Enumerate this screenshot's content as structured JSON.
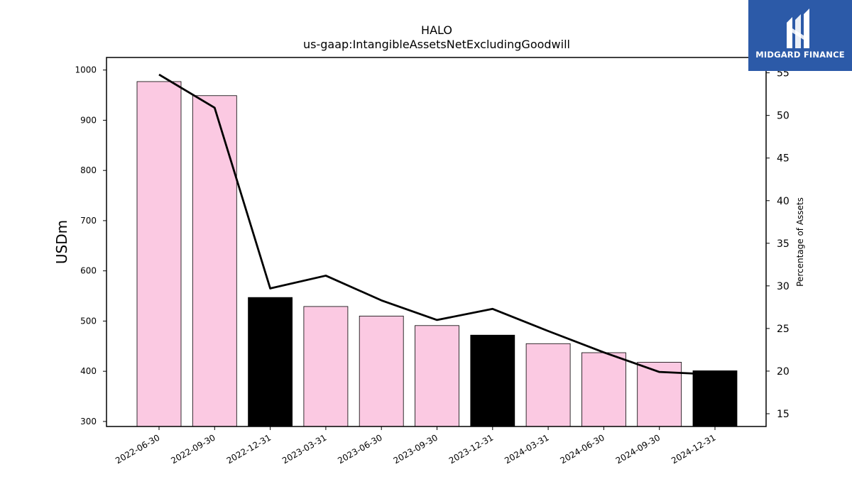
{
  "chart_data": {
    "type": "bar",
    "title": "HALO",
    "subtitle": "us-gaap:IntangibleAssetsNetExcludingGoodwill",
    "ylabel": "USDm",
    "y2label": "Percentage of Assets",
    "categories": [
      "2022-06-30",
      "2022-09-30",
      "2022-12-31",
      "2023-03-31",
      "2023-06-30",
      "2023-09-30",
      "2023-12-31",
      "2024-03-31",
      "2024-06-30",
      "2024-09-30",
      "2024-12-31"
    ],
    "series": [
      {
        "values": [
          977,
          949,
          547,
          529,
          510,
          491,
          472,
          455,
          437,
          418,
          401
        ],
        "colors": [
          "#fbc9e2",
          "#fbc9e2",
          "#000000",
          "#fbc9e2",
          "#fbc9e2",
          "#fbc9e2",
          "#000000",
          "#fbc9e2",
          "#fbc9e2",
          "#fbc9e2",
          "#000000"
        ]
      },
      {
        "axis": "right",
        "color": "#000000",
        "values": [
          54.8,
          50.9,
          29.7,
          31.2,
          28.3,
          26.0,
          27.3,
          24.7,
          22.2,
          19.9,
          19.6
        ]
      }
    ],
    "ylim": [
      290,
      1025
    ],
    "yticks": [
      300,
      400,
      500,
      600,
      700,
      800,
      900,
      1000
    ],
    "y2lim": [
      13.5,
      56.8
    ],
    "y2ticks": [
      15,
      20,
      25,
      30,
      35,
      40,
      45,
      50,
      55
    ]
  },
  "logo": {
    "text": "MIDGARD FINANCE",
    "bg_color": "#2c5aa8"
  }
}
